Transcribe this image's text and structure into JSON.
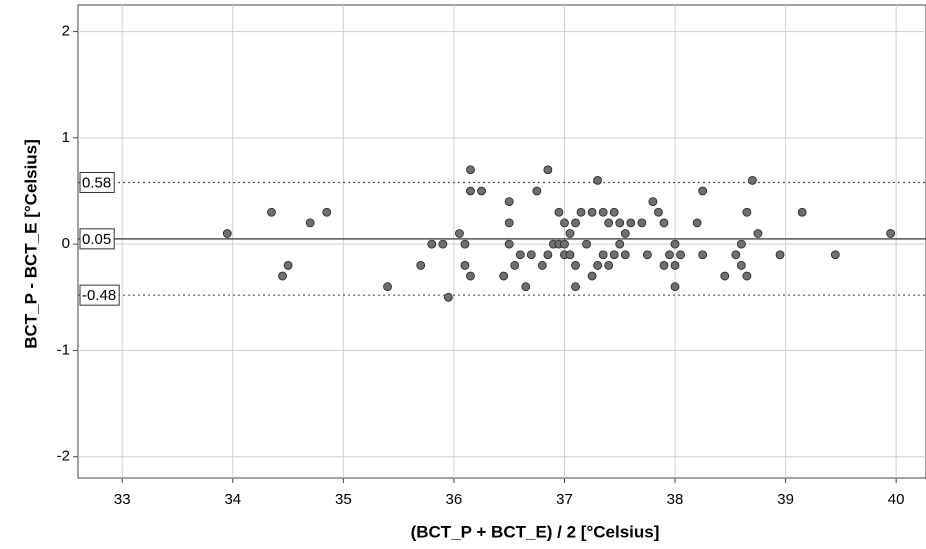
{
  "chart_data": {
    "type": "scatter",
    "x_label": "(BCT_P + BCT_E) / 2  [°Celsius]",
    "y_label": "BCT_P - BCT_E [°Celsius]",
    "xlim": [
      32.6,
      40.27
    ],
    "ylim": [
      -2.2,
      2.25
    ],
    "xticks": [
      33,
      34,
      35,
      36,
      37,
      38,
      39,
      40
    ],
    "yticks": [
      -2,
      -1,
      0,
      1,
      2
    ],
    "grid": true,
    "color": "#6f6f6f",
    "mean_line": 0.05,
    "limit_lines": [
      0.58,
      -0.48
    ],
    "x": [
      33.95,
      34.35,
      34.45,
      34.5,
      34.7,
      34.85,
      35.4,
      35.7,
      35.8,
      35.9,
      35.95,
      36.05,
      36.1,
      36.1,
      36.15,
      36.15,
      36.15,
      36.25,
      36.45,
      36.5,
      36.5,
      36.5,
      36.55,
      36.6,
      36.65,
      36.7,
      36.75,
      36.8,
      36.85,
      36.85,
      36.9,
      36.95,
      36.95,
      37,
      37,
      37,
      37.05,
      37.05,
      37.1,
      37.1,
      37.1,
      37.15,
      37.2,
      37.25,
      37.25,
      37.3,
      37.3,
      37.35,
      37.35,
      37.4,
      37.4,
      37.45,
      37.45,
      37.5,
      37.5,
      37.55,
      37.55,
      37.6,
      37.7,
      37.75,
      37.8,
      37.85,
      37.9,
      37.9,
      37.95,
      38,
      38,
      38,
      38.05,
      38.2,
      38.25,
      38.25,
      38.45,
      38.55,
      38.6,
      38.6,
      38.65,
      38.65,
      38.7,
      38.75,
      38.95,
      39.15,
      39.45,
      39.95
    ],
    "y": [
      0.1,
      0.3,
      -0.3,
      -0.2,
      0.2,
      0.3,
      -0.4,
      -0.2,
      0,
      0,
      -0.5,
      0.1,
      0,
      -0.2,
      -0.3,
      0.7,
      0.5,
      0.5,
      -0.3,
      0.4,
      0.2,
      0,
      -0.2,
      -0.1,
      -0.4,
      -0.1,
      0.5,
      -0.2,
      0.7,
      -0.1,
      0,
      0.3,
      0,
      0.2,
      -0.1,
      0,
      0.1,
      -0.1,
      0.2,
      -0.2,
      -0.4,
      0.3,
      0,
      0.3,
      -0.3,
      0.6,
      -0.2,
      0.3,
      -0.1,
      0.2,
      -0.2,
      0.3,
      -0.1,
      0.2,
      0,
      0.1,
      -0.1,
      0.2,
      0.2,
      -0.1,
      0.4,
      0.3,
      0.2,
      -0.2,
      -0.1,
      0,
      -0.2,
      -0.4,
      -0.1,
      0.2,
      0.5,
      -0.1,
      -0.3,
      -0.1,
      0,
      -0.2,
      0.3,
      -0.3,
      0.6,
      0.1,
      -0.1,
      0.3,
      -0.1,
      0.1
    ]
  }
}
